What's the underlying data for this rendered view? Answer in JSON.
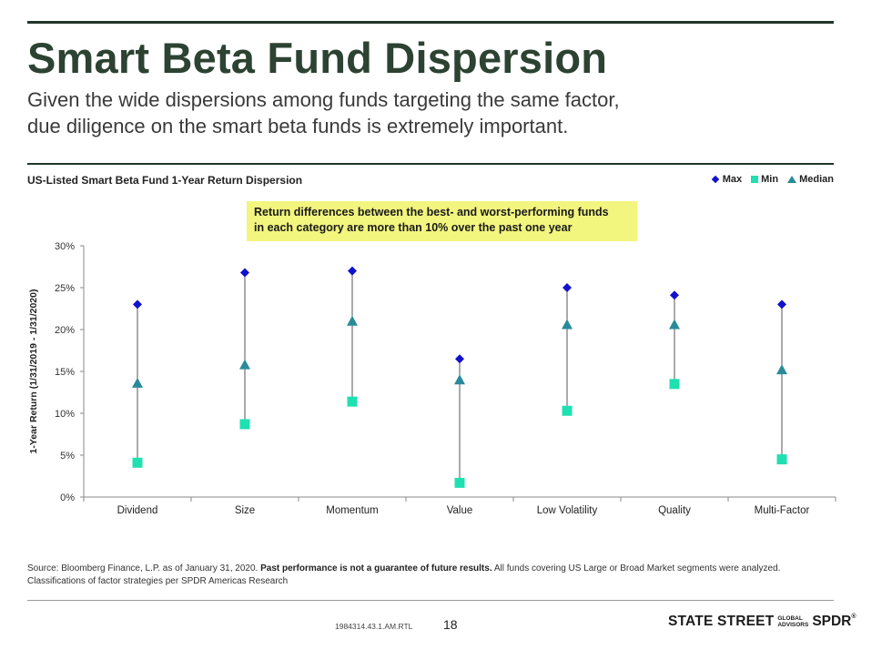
{
  "header": {
    "title": "Smart Beta Fund Dispersion",
    "subtitle_line1": "Given the wide dispersions among funds targeting the same factor,",
    "subtitle_line2": "due diligence on the smart beta funds is extremely important."
  },
  "callout": {
    "line1": "Return differences between the best- and worst-performing funds",
    "line2": "in each category are more than 10% over the past one year"
  },
  "legend": {
    "max": "Max",
    "min": "Min",
    "median": "Median"
  },
  "colors": {
    "max": "#1111cc",
    "min": "#1fe0b0",
    "median": "#2a8a9a",
    "range_line": "#555555",
    "title": "#2c4232",
    "rule": "#223529",
    "callout_bg": "#f2f57e"
  },
  "chart_data": {
    "type": "scatter",
    "title": "US-Listed Smart Beta Fund 1-Year Return Dispersion",
    "ylabel": "1-Year Return (1/31/2019 - 1/31/2020)",
    "xlabel": "",
    "ylim": [
      0,
      30
    ],
    "yticks": [
      "0%",
      "5%",
      "10%",
      "15%",
      "20%",
      "25%",
      "30%"
    ],
    "categories": [
      "Dividend",
      "Size",
      "Momentum",
      "Value",
      "Low Volatility",
      "Quality",
      "Multi-Factor"
    ],
    "series": [
      {
        "name": "Max",
        "marker": "diamond",
        "values": [
          23.0,
          26.8,
          27.0,
          16.5,
          25.0,
          24.1,
          23.0
        ]
      },
      {
        "name": "Min",
        "marker": "square",
        "values": [
          4.1,
          8.7,
          11.4,
          1.7,
          10.3,
          13.5,
          4.5
        ]
      },
      {
        "name": "Median",
        "marker": "triangle",
        "values": [
          13.6,
          15.8,
          21.0,
          14.0,
          20.6,
          20.6,
          15.2
        ]
      }
    ],
    "legend_position": "top-right",
    "grid": false
  },
  "footer": {
    "source_prefix": "Source: Bloomberg Finance, L.P. as of January 31, 2020.",
    "source_bold": "Past performance is not a guarantee of future results.",
    "source_rest": "All funds covering US Large or Broad Market segments were analyzed.  Classifications of factor strategies per SPDR Americas Research",
    "doc_code": "1984314.43.1.AM.RTL",
    "page_number": "18",
    "logo_main": "STATE STREET",
    "logo_global": "GLOBAL",
    "logo_advisors": "ADVISORS",
    "logo_spdr": "SPDR",
    "logo_reg": "®"
  }
}
